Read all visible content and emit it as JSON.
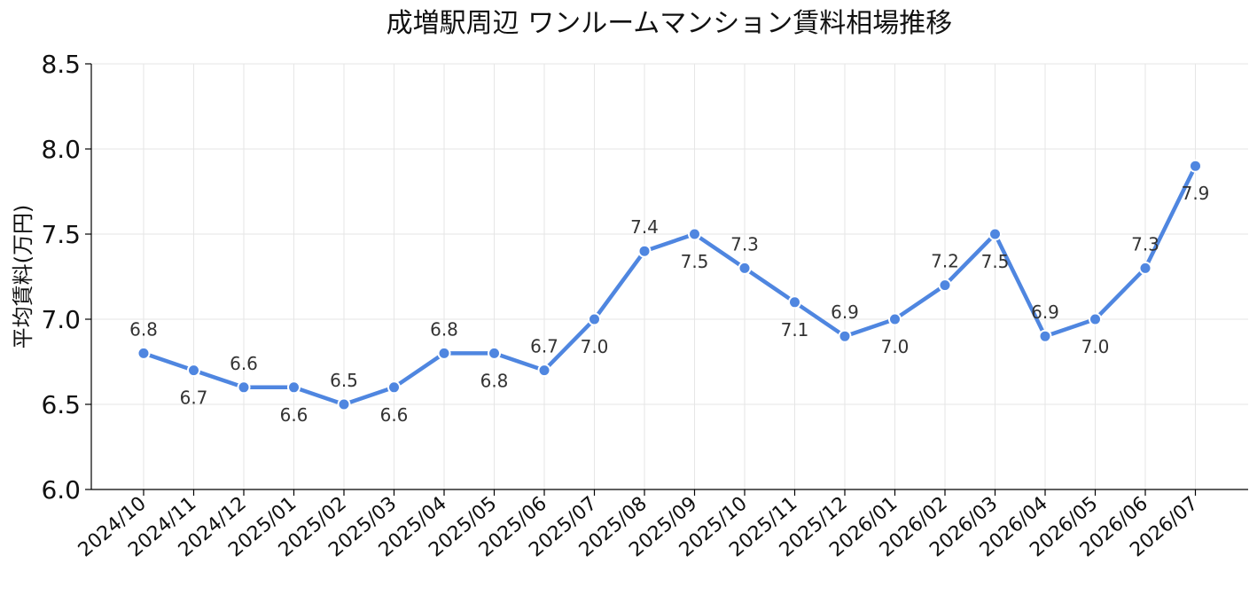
{
  "chart_data": {
    "type": "line",
    "title": "成増駅周辺 ワンルームマンション賃料相場推移",
    "xlabel": "",
    "ylabel": "平均賃料(万円)",
    "ylim": [
      6.0,
      8.5
    ],
    "yticks": [
      "6.0",
      "6.5",
      "7.0",
      "7.5",
      "8.0",
      "8.5"
    ],
    "grid": true,
    "categories": [
      "2024/10",
      "2024/11",
      "2024/12",
      "2025/01",
      "2025/02",
      "2025/03",
      "2025/04",
      "2025/05",
      "2025/06",
      "2025/07",
      "2025/08",
      "2025/09",
      "2025/10",
      "2025/11",
      "2025/12",
      "2026/01",
      "2026/02",
      "2026/03",
      "2026/04",
      "2026/05",
      "2026/06",
      "2026/07"
    ],
    "series": [
      {
        "color": "#4f86e0",
        "values": [
          6.8,
          6.7,
          6.6,
          6.6,
          6.5,
          6.6,
          6.8,
          6.8,
          6.7,
          7.0,
          7.4,
          7.5,
          7.3,
          7.1,
          6.9,
          7.0,
          7.2,
          7.5,
          6.9,
          7.0,
          7.3,
          7.9
        ],
        "labels": [
          "6.8",
          "6.7",
          "6.6",
          "6.6",
          "6.5",
          "6.6",
          "6.8",
          "6.8",
          "6.7",
          "7.0",
          "7.4",
          "7.5",
          "7.3",
          "7.1",
          "6.9",
          "7.0",
          "7.2",
          "7.5",
          "6.9",
          "7.0",
          "7.3",
          "7.9"
        ]
      }
    ]
  }
}
